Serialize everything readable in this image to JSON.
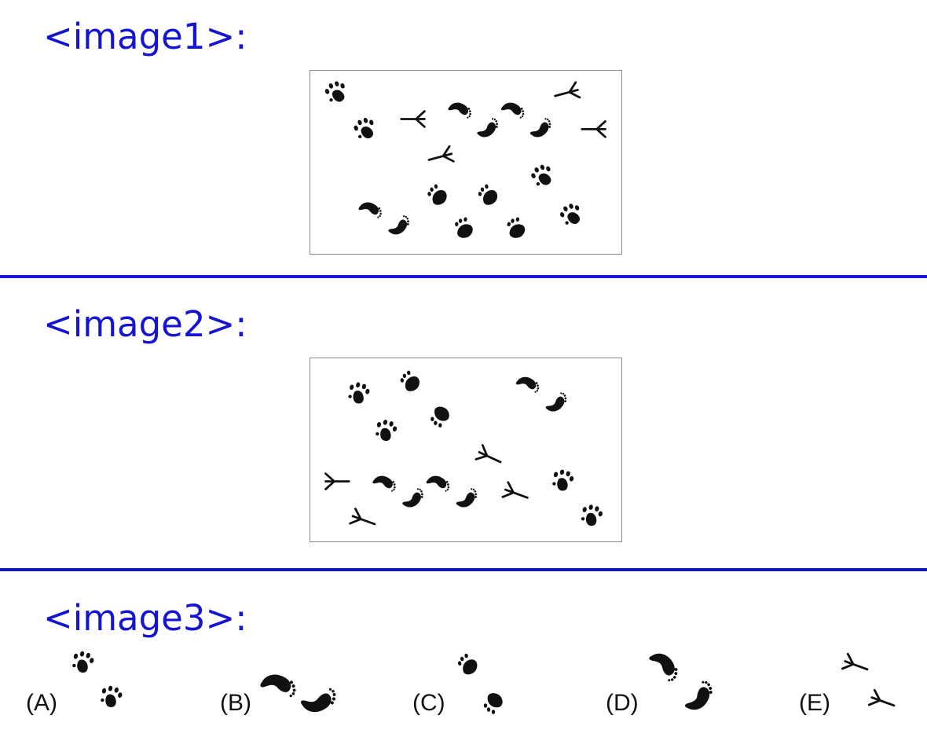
{
  "sections": [
    {
      "label": "<image1>:"
    },
    {
      "label": "<image2>:"
    },
    {
      "label": "<image3>:"
    }
  ],
  "options": [
    {
      "label": "(A)",
      "icon": "paw-print-pair-icon"
    },
    {
      "label": "(B)",
      "icon": "human-footprint-pair-icon"
    },
    {
      "label": "(C)",
      "icon": "toe-print-pair-icon"
    },
    {
      "label": "(D)",
      "icon": "footprint-pair-icon"
    },
    {
      "label": "(E)",
      "icon": "bird-track-pair-icon"
    }
  ],
  "colors": {
    "accent": "#1414d2",
    "ink": "#111111"
  }
}
